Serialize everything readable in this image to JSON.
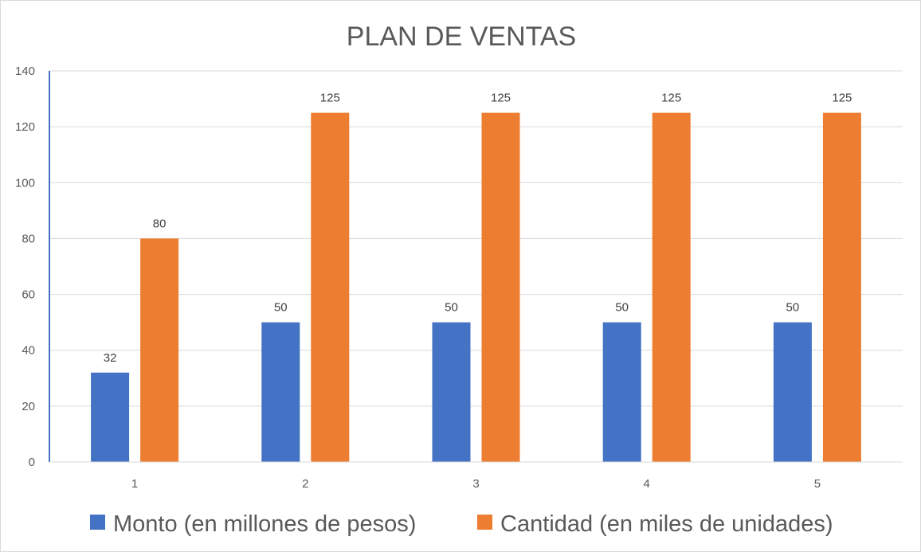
{
  "chart_data": {
    "type": "bar",
    "title": "PLAN DE VENTAS",
    "categories": [
      "1",
      "2",
      "3",
      "4",
      "5"
    ],
    "series": [
      {
        "name": "Monto (en millones de pesos)",
        "color": "#4472c4",
        "values": [
          32,
          50,
          50,
          50,
          50
        ]
      },
      {
        "name": "Cantidad (en miles de unidades)",
        "color": "#ed7d31",
        "values": [
          80,
          125,
          125,
          125,
          125
        ]
      }
    ],
    "ylim": [
      0,
      140
    ],
    "yticks": [
      0,
      20,
      40,
      60,
      80,
      100,
      120,
      140
    ],
    "grid": true,
    "legend": "bottom",
    "data_labels": true
  }
}
